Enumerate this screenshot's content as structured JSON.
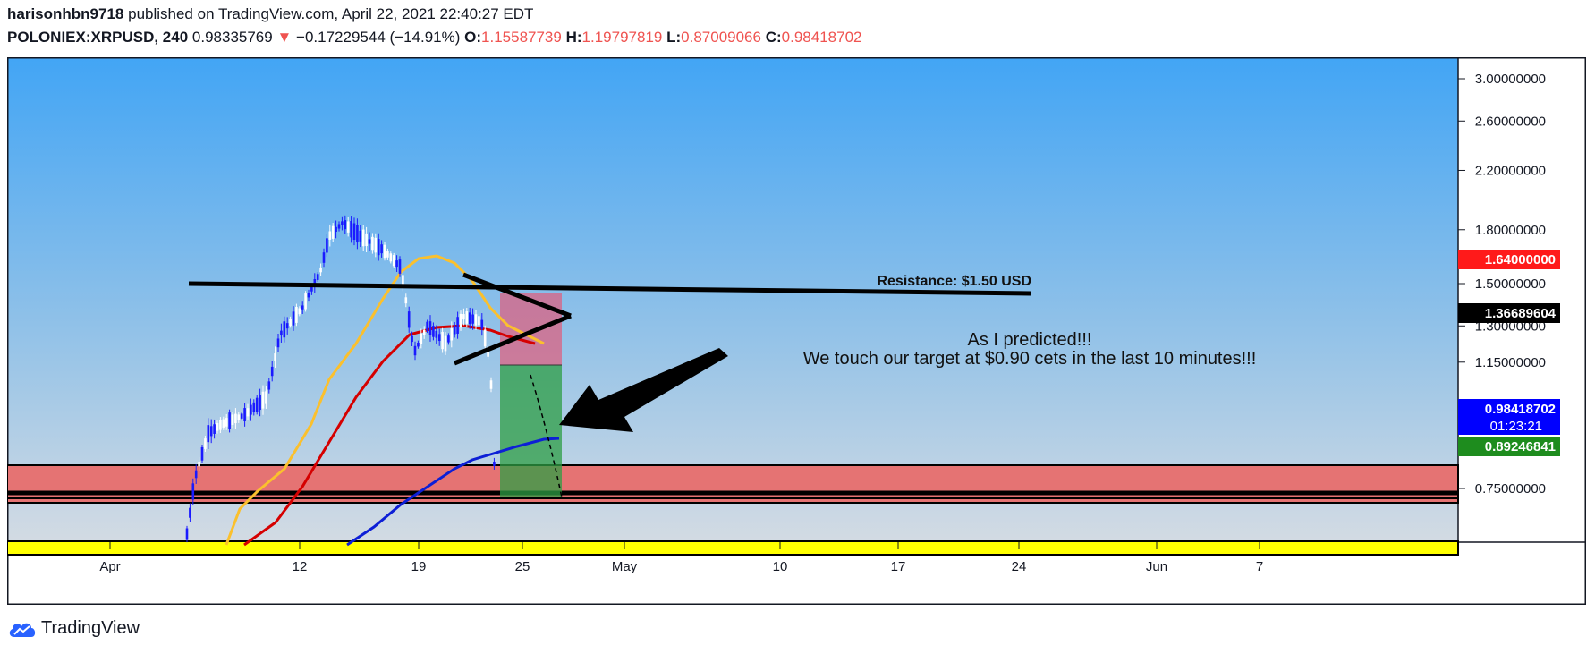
{
  "header": {
    "author": "harisonhbn9718",
    "published": "published on TradingView.com, April 22, 2021 22:40:27 EDT",
    "symbol": "POLONIEX:XRPUSD, 240",
    "price": "0.98335769",
    "change_arrow": "▼",
    "change": "−0.17229544 (−14.91%)",
    "o_label": "O:",
    "o_value": "1.15587739",
    "h_label": "H:",
    "h_value": "1.19797819",
    "l_label": "L:",
    "l_value": "0.87009066",
    "c_label": "C:",
    "c_value": "0.98418702"
  },
  "annotations": {
    "resistance": "Resistance: $1.50 USD",
    "prediction_line1": "As I predicted!!!",
    "prediction_line2": "We touch our target at $0.90 cets in the last 10 minutes!!!"
  },
  "price_labels": {
    "red": "1.64000000",
    "black": "1.36689604",
    "blue_price": "0.98418702",
    "blue_timer": "01:23:21",
    "green": "0.89246841"
  },
  "footer": {
    "brand": "TradingView"
  },
  "colors": {
    "background_top": "#42a5f5",
    "background_bottom": "#cfd8dc",
    "zone_red": "#e57373",
    "zone_yellow": "#ffff00",
    "ma_fast": "#fbc02d",
    "ma_mid": "#d50000",
    "ma_slow": "#0d1fd6",
    "candle_up": "#ffffff",
    "candle_down": "#1a1aff",
    "label_red": "#ff1a1a",
    "label_blue": "#0000ff",
    "label_green": "#1e8c1e"
  },
  "chart_data": {
    "type": "candlestick",
    "y_scale": "log",
    "y_ticks": [
      "3.00000000",
      "2.60000000",
      "2.20000000",
      "1.80000000",
      "1.50000000",
      "1.30000000",
      "1.15000000",
      "0.75000000"
    ],
    "x_ticks": [
      "Apr",
      "12",
      "19",
      "25",
      "May",
      "10",
      "17",
      "24",
      "Jun",
      "7"
    ],
    "resistance_level": 1.5,
    "target_zone": [
      0.9,
      0.99
    ],
    "support_zone": [
      0.74,
      0.76
    ],
    "position": {
      "entry": 1.36689604,
      "stop": 1.64,
      "target": 0.89246841
    }
  }
}
